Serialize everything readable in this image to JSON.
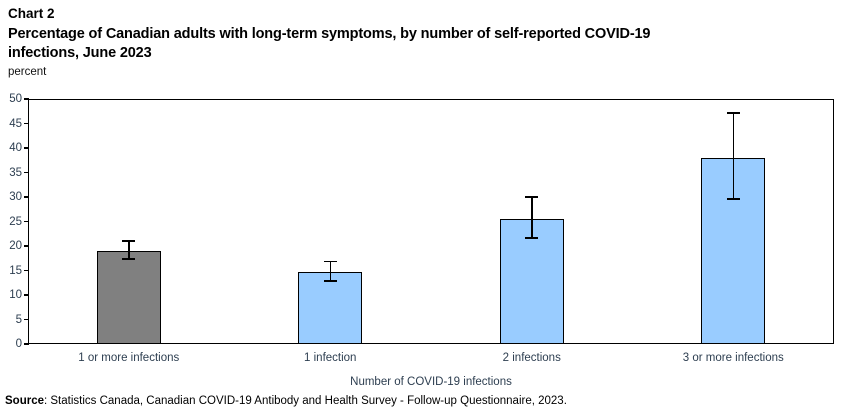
{
  "header": {
    "chart_label": "Chart 2",
    "title_line1": "Percentage of Canadian adults with long-term symptoms, by number of self-reported COVID-19",
    "title_line2": "infections, June 2023"
  },
  "chart_data": {
    "type": "bar",
    "title": "Chart 2",
    "subtitle": "Percentage of Canadian adults with long-term symptoms, by number of self-reported COVID-19 infections, June 2023",
    "categories": [
      "1 or more infections",
      "1 infection",
      "2 infections",
      "3 or more infections"
    ],
    "values": [
      19.0,
      14.6,
      25.5,
      38.0
    ],
    "error_low": [
      17.3,
      12.9,
      21.6,
      29.6
    ],
    "error_high": [
      21.0,
      16.8,
      30.0,
      47.1
    ],
    "bar_colors": [
      "#808080",
      "#99CCFF",
      "#99CCFF",
      "#99CCFF"
    ],
    "bar_border_color": "#000000",
    "ylabel": "percent",
    "xlabel": "Number of COVID-19 infections",
    "ylim": [
      0,
      50
    ],
    "ytick_step": 5,
    "grid": false,
    "legend": "none",
    "error_bars": true
  },
  "source": {
    "label": "Source",
    "text": ": Statistics Canada, Canadian COVID-19 Antibody and Health Survey - Follow-up Questionnaire, 2023."
  }
}
